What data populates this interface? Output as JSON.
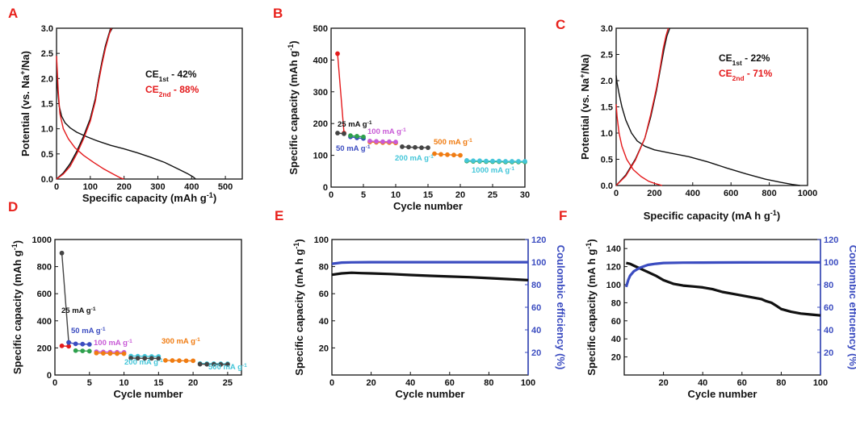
{
  "colors": {
    "panel_letter": "#e8211c",
    "black": "#111111",
    "red": "#e41a1c",
    "blue": "#3b4cc0",
    "pink": "#c85ad6",
    "cyan": "#44c6d9",
    "orange": "#f07c12",
    "green": "#2ea04d",
    "gray": "#444444"
  },
  "chart_data": [
    {
      "panel": "A",
      "type": "line",
      "xlabel": "Specific capacity (mAh g⁻¹)",
      "ylabel": "Potential (vs. Na⁺/Na)",
      "xlim": [
        0,
        550
      ],
      "ylim": [
        0,
        3.0
      ],
      "xticks": [
        "0",
        "100",
        "200",
        "300",
        "400",
        "500"
      ],
      "yticks": [
        "0.0",
        "0.5",
        "1.0",
        "1.5",
        "2.0",
        "2.5",
        "3.0"
      ],
      "annotations": [
        {
          "text": "CE1st - 42%",
          "color": "black"
        },
        {
          "text": "CE2nd - 88%",
          "color": "red"
        }
      ],
      "series": [
        {
          "name": "1st discharge",
          "color": "black",
          "x": [
            0,
            3,
            8,
            15,
            25,
            40,
            60,
            90,
            120,
            160,
            200,
            240,
            280,
            320,
            360,
            390,
            405,
            412
          ],
          "y": [
            2.05,
            1.8,
            1.45,
            1.25,
            1.12,
            1.02,
            0.93,
            0.84,
            0.76,
            0.67,
            0.6,
            0.52,
            0.43,
            0.33,
            0.2,
            0.1,
            0.04,
            0.0
          ]
        },
        {
          "name": "1st charge",
          "color": "black",
          "x": [
            0,
            20,
            40,
            60,
            80,
            100,
            115,
            125,
            135,
            145,
            155,
            165
          ],
          "y": [
            0.0,
            0.12,
            0.3,
            0.55,
            0.85,
            1.2,
            1.6,
            2.0,
            2.35,
            2.65,
            2.88,
            3.0
          ]
        },
        {
          "name": "2nd charge",
          "color": "black",
          "x": [
            0,
            20,
            40,
            60,
            80,
            100,
            115,
            125,
            135,
            145,
            155,
            160
          ],
          "y": [
            0.0,
            0.12,
            0.3,
            0.55,
            0.85,
            1.2,
            1.6,
            2.0,
            2.35,
            2.65,
            2.88,
            3.0
          ]
        },
        {
          "name": "2nd discharge",
          "color": "red",
          "x": [
            0,
            2,
            5,
            10,
            20,
            35,
            55,
            80,
            110,
            140,
            170,
            190,
            200
          ],
          "y": [
            2.45,
            2.2,
            1.75,
            1.3,
            1.0,
            0.8,
            0.62,
            0.47,
            0.33,
            0.2,
            0.09,
            0.02,
            0.0
          ]
        },
        {
          "name": "2nd charge red",
          "color": "red",
          "x": [
            0,
            20,
            40,
            60,
            80,
            100,
            115,
            125,
            135,
            145,
            155,
            162
          ],
          "y": [
            0.0,
            0.1,
            0.25,
            0.5,
            0.8,
            1.15,
            1.55,
            1.95,
            2.3,
            2.6,
            2.85,
            3.0
          ]
        }
      ]
    },
    {
      "panel": "B",
      "type": "line",
      "xlabel": "Cycle number",
      "ylabel": "Specific capacity (mAh g⁻¹)",
      "xlim": [
        0,
        30
      ],
      "ylim": [
        0,
        500
      ],
      "xticks": [
        "0",
        "5",
        "10",
        "15",
        "20",
        "25",
        "30"
      ],
      "yticks": [
        "0",
        "100",
        "200",
        "300",
        "400",
        "500"
      ],
      "annotations": [
        {
          "text": "25 mA g⁻¹",
          "color": "black"
        },
        {
          "text": "100 mA g⁻¹",
          "color": "pink"
        },
        {
          "text": "50 mA g⁻¹",
          "color": "blue"
        },
        {
          "text": "500 mA g⁻¹",
          "color": "orange"
        },
        {
          "text": "200 mA g⁻¹",
          "color": "cyan"
        },
        {
          "text": "1000 mA g⁻¹",
          "color": "cyan"
        }
      ],
      "series": [
        {
          "name": "red-segment",
          "color": "red",
          "x": [
            1,
            2
          ],
          "y": [
            420,
            170
          ]
        },
        {
          "name": "25",
          "color": "gray",
          "x": [
            1,
            2
          ],
          "y": [
            170,
            168
          ]
        },
        {
          "name": "50",
          "color": "blue",
          "x": [
            3,
            4,
            5
          ],
          "y": [
            158,
            155,
            153
          ]
        },
        {
          "name": "50b",
          "color": "green",
          "x": [
            3,
            4,
            5
          ],
          "y": [
            162,
            160,
            158
          ]
        },
        {
          "name": "100",
          "color": "orange",
          "x": [
            6,
            7,
            8,
            9,
            10
          ],
          "y": [
            142,
            141,
            140,
            140,
            139
          ]
        },
        {
          "name": "100b",
          "color": "pink",
          "x": [
            6,
            7,
            8,
            9,
            10
          ],
          "y": [
            145,
            144,
            143,
            143,
            142
          ]
        },
        {
          "name": "200",
          "color": "gray",
          "x": [
            11,
            12,
            13,
            14,
            15
          ],
          "y": [
            127,
            126,
            125,
            124,
            124
          ]
        },
        {
          "name": "500",
          "color": "orange",
          "x": [
            16,
            17,
            18,
            19,
            20
          ],
          "y": [
            105,
            103,
            102,
            101,
            100
          ]
        },
        {
          "name": "1000",
          "color": "green",
          "x": [
            21,
            22,
            23,
            24,
            25,
            26,
            27,
            28,
            29,
            30
          ],
          "y": [
            82,
            81,
            81,
            80,
            80,
            80,
            79,
            79,
            79,
            79
          ]
        },
        {
          "name": "1000b",
          "color": "cyan",
          "x": [
            21,
            22,
            23,
            24,
            25,
            26,
            27,
            28,
            29,
            30
          ],
          "y": [
            84,
            83,
            83,
            82,
            82,
            82,
            81,
            81,
            81,
            81
          ]
        }
      ]
    },
    {
      "panel": "C",
      "type": "line",
      "xlabel": "Specific capacity (mA h g⁻¹)",
      "ylabel": "Potential (vs. Na⁺/Na)",
      "xlim": [
        0,
        1000
      ],
      "ylim": [
        0,
        3.0
      ],
      "xticks": [
        "0",
        "200",
        "400",
        "600",
        "800",
        "1000"
      ],
      "yticks": [
        "0.0",
        "0.5",
        "1.0",
        "1.5",
        "2.0",
        "2.5",
        "3.0"
      ],
      "annotations": [
        {
          "text": "CE1st - 22%",
          "color": "black"
        },
        {
          "text": "CE2nd - 71%",
          "color": "red"
        }
      ],
      "series": [
        {
          "name": "1st discharge",
          "color": "black",
          "x": [
            0,
            5,
            15,
            30,
            50,
            80,
            110,
            150,
            200,
            280,
            380,
            480,
            580,
            680,
            780,
            860,
            920,
            960
          ],
          "y": [
            2.1,
            1.95,
            1.75,
            1.5,
            1.25,
            1.0,
            0.85,
            0.75,
            0.68,
            0.62,
            0.55,
            0.45,
            0.33,
            0.22,
            0.12,
            0.06,
            0.02,
            0.0
          ]
        },
        {
          "name": "1st charge",
          "color": "black",
          "x": [
            0,
            50,
            100,
            150,
            180,
            210,
            230,
            250,
            265,
            280
          ],
          "y": [
            0.0,
            0.2,
            0.5,
            0.9,
            1.3,
            1.8,
            2.2,
            2.6,
            2.85,
            3.0
          ]
        },
        {
          "name": "2nd discharge",
          "color": "red",
          "x": [
            0,
            5,
            15,
            30,
            55,
            90,
            130,
            170,
            210,
            240
          ],
          "y": [
            1.55,
            1.3,
            1.0,
            0.75,
            0.5,
            0.3,
            0.17,
            0.08,
            0.03,
            0.0
          ]
        },
        {
          "name": "2nd charge",
          "color": "red",
          "x": [
            0,
            50,
            100,
            150,
            180,
            210,
            230,
            245,
            260,
            272
          ],
          "y": [
            0.0,
            0.18,
            0.48,
            0.9,
            1.35,
            1.85,
            2.25,
            2.6,
            2.85,
            3.0
          ]
        }
      ]
    },
    {
      "panel": "D",
      "type": "line",
      "xlabel": "Cycle number",
      "ylabel": "Specific capacity (mAh g⁻¹)",
      "xlim": [
        0,
        27
      ],
      "ylim": [
        0,
        1000
      ],
      "xticks": [
        "0",
        "5",
        "10",
        "15",
        "20",
        "25"
      ],
      "yticks": [
        "0",
        "200",
        "400",
        "600",
        "800",
        "1000"
      ],
      "annotations": [
        {
          "text": "25 mA g⁻¹",
          "color": "black"
        },
        {
          "text": "50 mA g⁻¹",
          "color": "blue"
        },
        {
          "text": "100 mA g⁻¹",
          "color": "pink"
        },
        {
          "text": "300 mA g⁻¹",
          "color": "orange"
        },
        {
          "text": "200 mA g⁻¹",
          "color": "cyan"
        },
        {
          "text": "500 mA g⁻¹",
          "color": "cyan"
        }
      ],
      "series": [
        {
          "name": "first",
          "color": "gray",
          "x": [
            1,
            2
          ],
          "y": [
            900,
            240
          ]
        },
        {
          "name": "red",
          "color": "red",
          "x": [
            1,
            2
          ],
          "y": [
            215,
            212
          ]
        },
        {
          "name": "50",
          "color": "blue",
          "x": [
            2,
            3,
            4,
            5
          ],
          "y": [
            240,
            230,
            228,
            226
          ]
        },
        {
          "name": "50b",
          "color": "green",
          "x": [
            3,
            4,
            5
          ],
          "y": [
            180,
            178,
            176
          ]
        },
        {
          "name": "100",
          "color": "pink",
          "x": [
            6,
            7,
            8,
            9,
            10
          ],
          "y": [
            172,
            170,
            169,
            168,
            167
          ]
        },
        {
          "name": "100b",
          "color": "orange",
          "x": [
            6,
            7,
            8,
            9,
            10
          ],
          "y": [
            162,
            160,
            159,
            158,
            157
          ]
        },
        {
          "name": "200",
          "color": "cyan",
          "x": [
            11,
            12,
            13,
            14,
            15
          ],
          "y": [
            140,
            139,
            138,
            137,
            137
          ]
        },
        {
          "name": "200b",
          "color": "gray",
          "x": [
            11,
            12,
            13,
            14,
            15
          ],
          "y": [
            125,
            124,
            123,
            123,
            122
          ]
        },
        {
          "name": "300",
          "color": "orange",
          "x": [
            16,
            17,
            18,
            19,
            20
          ],
          "y": [
            108,
            107,
            106,
            105,
            105
          ]
        },
        {
          "name": "500",
          "color": "cyan",
          "x": [
            21,
            22,
            23,
            24,
            25
          ],
          "y": [
            85,
            84,
            84,
            83,
            83
          ]
        },
        {
          "name": "500b",
          "color": "gray",
          "x": [
            21,
            22,
            23,
            24,
            25
          ],
          "y": [
            80,
            79,
            79,
            78,
            78
          ]
        }
      ]
    },
    {
      "panel": "E",
      "type": "line",
      "xlabel": "Cycle number",
      "ylabel": "Specific capacity (mA h g⁻¹)",
      "y2label": "Coulombic efficiency (%)",
      "xlim": [
        0,
        100
      ],
      "ylim": [
        0,
        100
      ],
      "y2lim": [
        0,
        120
      ],
      "xticks": [
        "0",
        "20",
        "40",
        "60",
        "80",
        "100"
      ],
      "yticks": [
        "20",
        "40",
        "60",
        "80",
        "100"
      ],
      "y2ticks": [
        "20",
        "40",
        "60",
        "80",
        "100",
        "120"
      ],
      "series": [
        {
          "name": "capacity",
          "color": "black",
          "axis": "left",
          "x": [
            0,
            5,
            10,
            15,
            20,
            30,
            40,
            50,
            60,
            70,
            80,
            90,
            100
          ],
          "y": [
            74,
            75,
            75.5,
            75.2,
            75,
            74.5,
            73.8,
            73.2,
            72.7,
            72.2,
            71.5,
            70.8,
            70
          ]
        },
        {
          "name": "coulombic efficiency",
          "color": "blue",
          "axis": "right",
          "x": [
            0,
            5,
            10,
            20,
            40,
            60,
            80,
            100
          ],
          "y": [
            98.5,
            99.6,
            99.8,
            99.9,
            99.9,
            99.9,
            99.9,
            99.9
          ]
        }
      ]
    },
    {
      "panel": "F",
      "type": "line",
      "xlabel": "Cycle number",
      "ylabel": "Specific capacity (mA h g⁻¹)",
      "y2label": "Coulombic efficiency (%)",
      "xlim": [
        0,
        100
      ],
      "ylim": [
        0,
        150
      ],
      "y2lim": [
        0,
        120
      ],
      "xticks": [
        "20",
        "40",
        "60",
        "80",
        "100"
      ],
      "yticks": [
        "20",
        "40",
        "60",
        "80",
        "100",
        "120",
        "140"
      ],
      "y2ticks": [
        "20",
        "40",
        "60",
        "80",
        "100",
        "120"
      ],
      "series": [
        {
          "name": "capacity",
          "color": "black",
          "axis": "left",
          "x": [
            1,
            3,
            5,
            8,
            12,
            16,
            20,
            25,
            30,
            35,
            40,
            45,
            50,
            55,
            60,
            65,
            70,
            72,
            75,
            78,
            80,
            85,
            90,
            95,
            100
          ],
          "y": [
            124,
            123,
            121,
            118,
            114,
            110,
            105,
            101,
            99,
            98,
            97,
            95,
            92,
            90,
            88,
            86,
            84,
            82,
            80,
            76,
            73,
            70,
            68,
            67,
            66
          ]
        },
        {
          "name": "coulombic efficiency",
          "color": "blue",
          "axis": "right",
          "x": [
            1,
            2,
            3,
            5,
            8,
            12,
            16,
            20,
            30,
            40,
            60,
            80,
            100
          ],
          "y": [
            78,
            84,
            88,
            92,
            95,
            97.5,
            98.5,
            99.2,
            99.5,
            99.6,
            99.7,
            99.8,
            99.8
          ]
        }
      ]
    }
  ],
  "labels": {
    "A": "A",
    "B": "B",
    "C": "C",
    "D": "D",
    "E": "E",
    "F": "F"
  }
}
